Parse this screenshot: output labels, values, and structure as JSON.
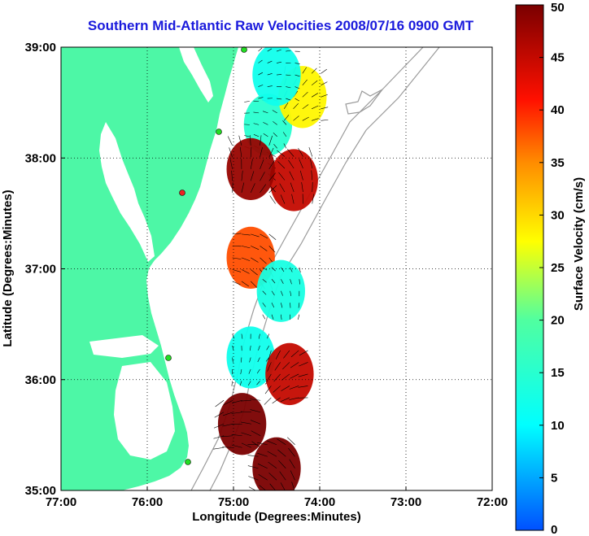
{
  "chart_data": {
    "type": "heatmap",
    "title": "Southern Mid-Atlantic Raw Velocities 2008/07/16 0900 GMT",
    "xlabel": "Longitude (Degrees:Minutes)",
    "ylabel": "Latitude (Degrees:Minutes)",
    "xlim": [
      -77,
      -72
    ],
    "ylim": [
      35,
      39
    ],
    "x_ticks": [
      {
        "value": -77,
        "label": "77:00"
      },
      {
        "value": -76,
        "label": "76:00"
      },
      {
        "value": -75,
        "label": "75:00"
      },
      {
        "value": -74,
        "label": "74:00"
      },
      {
        "value": -73,
        "label": "73:00"
      },
      {
        "value": -72,
        "label": "72:00"
      }
    ],
    "y_ticks": [
      {
        "value": 35,
        "label": "35:00"
      },
      {
        "value": 36,
        "label": "36:00"
      },
      {
        "value": 37,
        "label": "37:00"
      },
      {
        "value": 38,
        "label": "38:00"
      },
      {
        "value": 39,
        "label": "39:00"
      }
    ],
    "grid": true,
    "colorbar": {
      "label": "Surface Velocity (cm/s)",
      "range": [
        0,
        50
      ],
      "ticks": [
        {
          "value": 0,
          "label": "0"
        },
        {
          "value": 5,
          "label": "5"
        },
        {
          "value": 10,
          "label": "10"
        },
        {
          "value": 15,
          "label": "15"
        },
        {
          "value": 20,
          "label": "20"
        },
        {
          "value": 25,
          "label": "25"
        },
        {
          "value": 30,
          "label": "30"
        },
        {
          "value": 35,
          "label": "35"
        },
        {
          "value": 40,
          "label": "40"
        },
        {
          "value": 45,
          "label": "45"
        },
        {
          "value": 50,
          "label": "50"
        }
      ]
    },
    "velocity_fields": [
      {
        "lon": -74.6,
        "lat": 38.3,
        "speed": 15
      },
      {
        "lon": -74.3,
        "lat": 37.8,
        "speed": 45
      },
      {
        "lon": -74.8,
        "lat": 37.9,
        "speed": 48
      },
      {
        "lon": -74.2,
        "lat": 38.55,
        "speed": 28
      },
      {
        "lon": -74.5,
        "lat": 38.75,
        "speed": 12
      },
      {
        "lon": -74.8,
        "lat": 37.1,
        "speed": 38
      },
      {
        "lon": -74.45,
        "lat": 36.8,
        "speed": 13
      },
      {
        "lon": -74.8,
        "lat": 36.2,
        "speed": 12
      },
      {
        "lon": -74.35,
        "lat": 36.05,
        "speed": 45
      },
      {
        "lon": -74.9,
        "lat": 35.6,
        "speed": 50
      },
      {
        "lon": -74.5,
        "lat": 35.2,
        "speed": 50
      }
    ],
    "land_color": "#4df7a6",
    "gridline_color": "#000000",
    "title_color": "#1a1adc"
  }
}
